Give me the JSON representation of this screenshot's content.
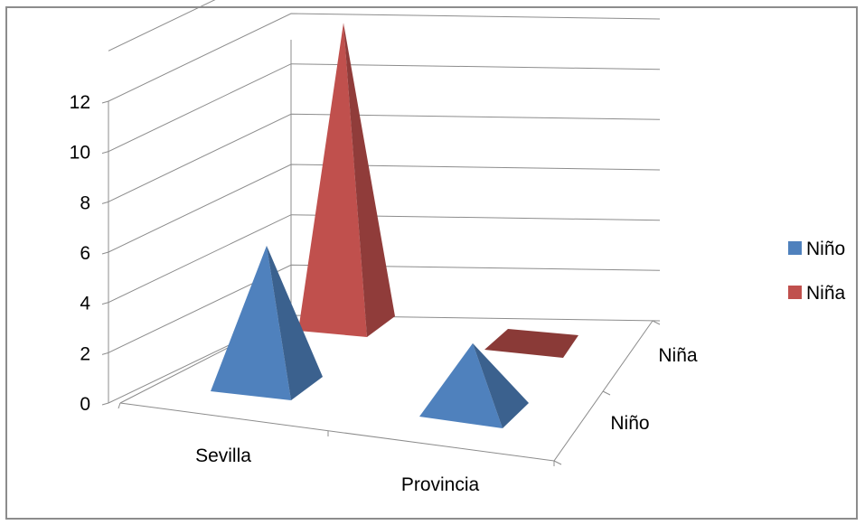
{
  "chart_data": {
    "type": "bar",
    "style": "3d-pyramid",
    "categories": [
      "Sevilla",
      "Provincia"
    ],
    "series": [
      {
        "name": "Niño",
        "color": "#4f81bd",
        "values": [
          5.5,
          2.7
        ]
      },
      {
        "name": "Niña",
        "color": "#c0504d",
        "values": [
          12.1,
          0
        ]
      }
    ],
    "depth_labels": [
      "Niño",
      "Niña"
    ],
    "yticks": [
      "0",
      "2",
      "4",
      "6",
      "8",
      "10",
      "12"
    ],
    "ylim": [
      0,
      14
    ],
    "grid": true,
    "legend_position": "right"
  }
}
